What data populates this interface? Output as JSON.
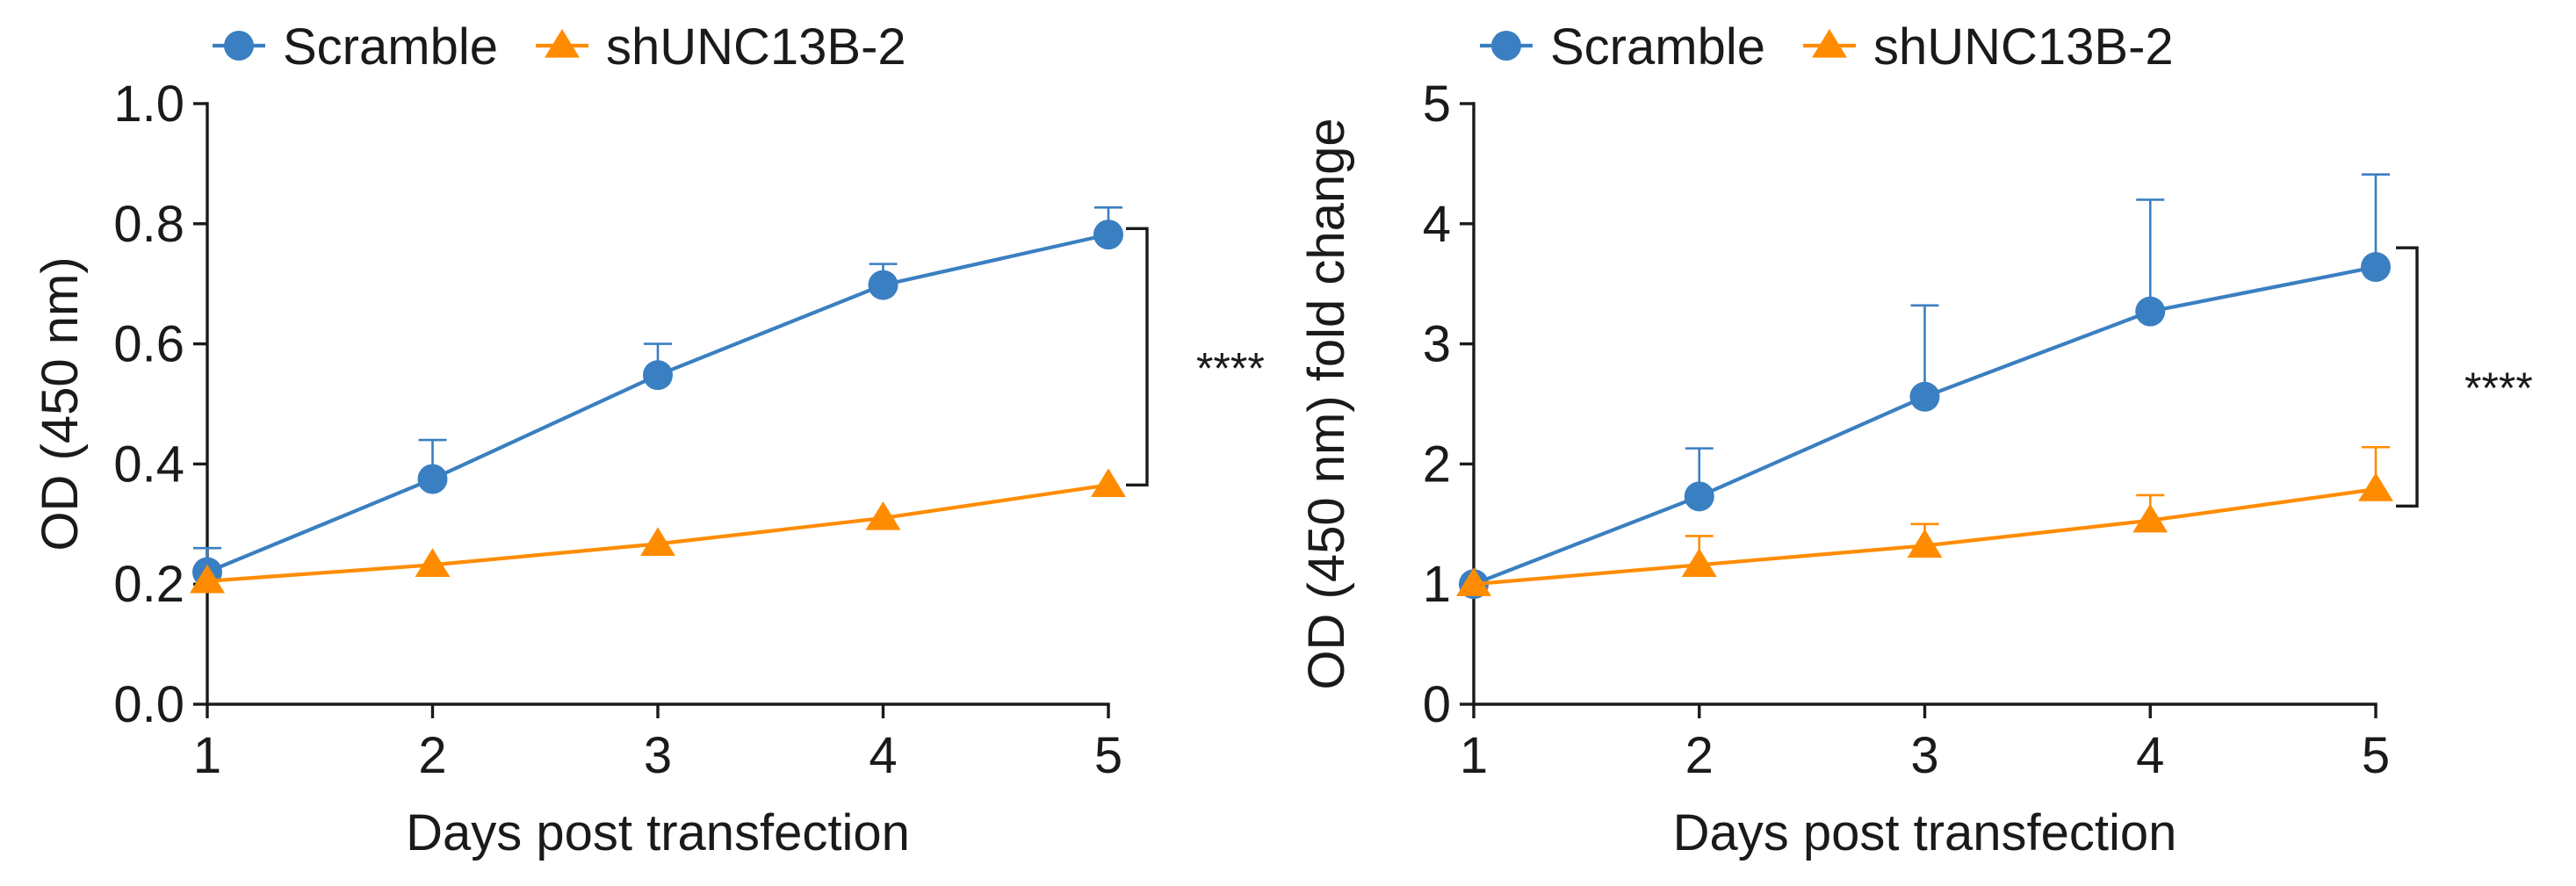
{
  "colors": {
    "scramble": "#3a7fc1",
    "sh": "#ff8c00",
    "axis": "#1a1a1a"
  },
  "chart_data": [
    {
      "type": "line",
      "xlabel": "Days post transfection",
      "ylabel": "OD (450 nm)",
      "x": [
        1,
        2,
        3,
        4,
        5
      ],
      "xticks": [
        "1",
        "2",
        "3",
        "4",
        "5"
      ],
      "yticks": [
        "0.0",
        "0.2",
        "0.4",
        "0.6",
        "0.8",
        "1.0"
      ],
      "xlim": [
        1,
        5
      ],
      "ylim": [
        0,
        1.0
      ],
      "legend": [
        "Scramble",
        "shUNC13B-2"
      ],
      "series": [
        {
          "name": "Scramble",
          "marker": "circle",
          "values": [
            0.22,
            0.375,
            0.548,
            0.698,
            0.782
          ],
          "err": [
            0.04,
            0.065,
            0.052,
            0.035,
            0.045
          ]
        },
        {
          "name": "shUNC13B-2",
          "marker": "triangle",
          "values": [
            0.205,
            0.232,
            0.267,
            0.31,
            0.365
          ],
          "err": [
            0,
            0,
            0,
            0,
            0
          ]
        }
      ],
      "significance": "****",
      "bracket": [
        0.365,
        0.792
      ]
    },
    {
      "type": "line",
      "xlabel": "Days post transfection",
      "ylabel": "OD (450 nm) fold change",
      "x": [
        1,
        2,
        3,
        4,
        5
      ],
      "xticks": [
        "1",
        "2",
        "3",
        "4",
        "5"
      ],
      "yticks": [
        "0",
        "1",
        "2",
        "3",
        "4",
        "5"
      ],
      "xlim": [
        1,
        5
      ],
      "ylim": [
        0,
        5
      ],
      "legend": [
        "Scramble",
        "shUNC13B-2"
      ],
      "series": [
        {
          "name": "Scramble",
          "marker": "circle",
          "values": [
            1.0,
            1.73,
            2.56,
            3.27,
            3.64
          ],
          "err": [
            0,
            0.4,
            0.76,
            0.93,
            0.77
          ]
        },
        {
          "name": "shUNC13B-2",
          "marker": "triangle",
          "values": [
            1.0,
            1.16,
            1.32,
            1.53,
            1.79
          ],
          "err": [
            0,
            0.24,
            0.18,
            0.21,
            0.35
          ]
        }
      ],
      "significance": "****",
      "bracket": [
        1.65,
        3.8
      ]
    }
  ]
}
